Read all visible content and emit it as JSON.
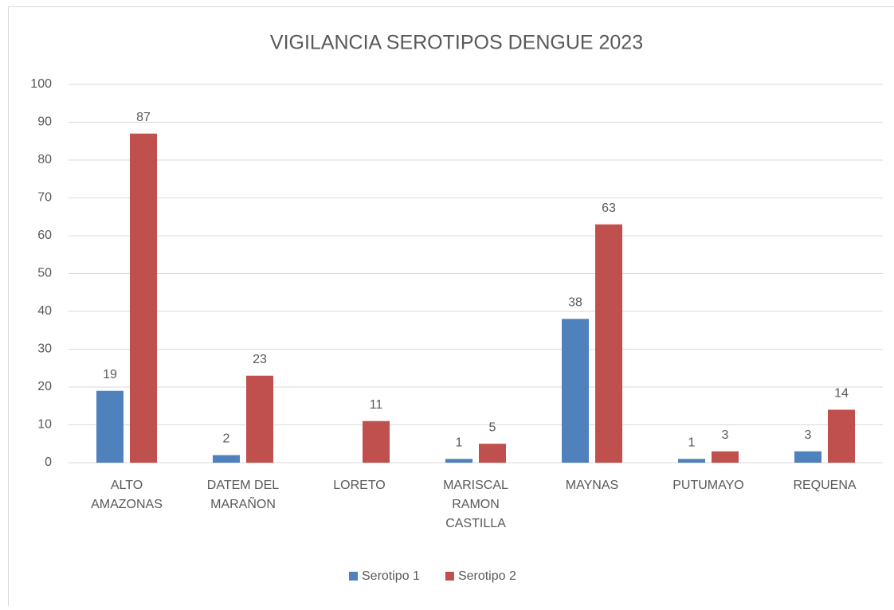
{
  "chart_data": {
    "type": "bar",
    "title": "VIGILANCIA SEROTIPOS DENGUE 2023",
    "categories": [
      "ALTO AMAZONAS",
      "DATEM DEL MARAÑON",
      "LORETO",
      "MARISCAL RAMON CASTILLA",
      "MAYNAS",
      "PUTUMAYO",
      "REQUENA"
    ],
    "series": [
      {
        "name": "Serotipo 1",
        "color": "#4f81bd",
        "values": [
          19,
          2,
          null,
          1,
          38,
          1,
          3
        ]
      },
      {
        "name": "Serotipo 2",
        "color": "#c0504d",
        "values": [
          87,
          23,
          11,
          5,
          63,
          3,
          14
        ]
      }
    ],
    "ylim": [
      0,
      100
    ],
    "yticks": [
      0,
      10,
      20,
      30,
      40,
      50,
      60,
      70,
      80,
      90,
      100
    ],
    "grid": true,
    "legend": "bottom"
  }
}
